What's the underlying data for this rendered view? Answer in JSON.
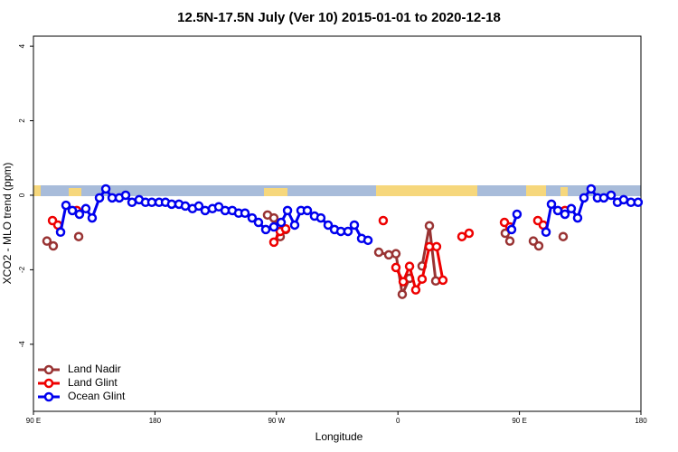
{
  "chart_data": {
    "type": "line",
    "title": "12.5N-17.5N July (Ver 10)   2015-01-01 to 2020-12-18",
    "x_label": "Longitude",
    "y_label": "XCO2 - MLO trend (ppm)",
    "xlim": [
      90,
      540
    ],
    "ylim": [
      -5.8,
      4.27
    ],
    "xticks": [
      {
        "value": 90,
        "label": "90 E"
      },
      180,
      {
        "value": 270,
        "label": "90 W"
      },
      {
        "value": 360,
        "label": "0"
      },
      {
        "value": 450,
        "label": "90 E"
      },
      {
        "value": 540,
        "label": "180"
      }
    ],
    "yticks": [
      -4,
      -2,
      0,
      2,
      4
    ],
    "legend": "bottom-left",
    "series": [
      {
        "name": "Land Nadir",
        "color": "#993333",
        "x": [
          100.0,
          104.7,
          123.5,
          263.4,
          268.1,
          272.8,
          276.8,
          345.8,
          353.2,
          358.5,
          363.2,
          368.6,
          377.9,
          383.3,
          388.0,
          439.5,
          442.9,
          460.3,
          464.3,
          482.4
        ],
        "values": [
          -1.23,
          -1.36,
          -1.11,
          -0.53,
          -0.61,
          -1.11,
          -0.92,
          -1.53,
          -1.6,
          -1.57,
          -2.66,
          -2.23,
          -1.9,
          -0.82,
          -2.3,
          -1.02,
          -1.23,
          -1.23,
          -1.36,
          -1.11
        ]
      },
      {
        "name": "Land Glint",
        "color": "#ee0000",
        "x": [
          104.1,
          108.1,
          122.1,
          268.1,
          272.8,
          276.8,
          349.1,
          358.5,
          363.9,
          368.6,
          373.2,
          377.9,
          383.3,
          388.6,
          393.3,
          407.4,
          412.7,
          438.9,
          442.9,
          463.6,
          467.6,
          483.7
        ],
        "values": [
          -0.68,
          -0.8,
          -0.41,
          -1.26,
          -0.97,
          -0.9,
          -0.68,
          -1.94,
          -2.32,
          -1.91,
          -2.54,
          -2.25,
          -1.38,
          -1.38,
          -2.28,
          -1.11,
          -1.02,
          -0.73,
          -0.85,
          -0.68,
          -0.8,
          -0.41
        ]
      },
      {
        "name": "Ocean Glint",
        "color": "#0000ee",
        "x": [
          110.1,
          114.1,
          118.8,
          124.1,
          128.8,
          133.5,
          138.9,
          143.6,
          148.3,
          153.6,
          158.3,
          163.0,
          168.3,
          173.0,
          177.7,
          183.1,
          187.8,
          192.4,
          197.8,
          202.5,
          207.8,
          212.5,
          217.2,
          222.6,
          227.3,
          232.0,
          237.3,
          242.0,
          246.7,
          252.0,
          256.7,
          262.1,
          268.1,
          273.5,
          278.2,
          283.5,
          288.2,
          292.9,
          298.2,
          302.9,
          308.3,
          313.0,
          317.7,
          323.0,
          327.7,
          333.1,
          337.8,
          444.2,
          448.2,
          469.7,
          473.7,
          478.4,
          483.7,
          488.4,
          493.1,
          497.8,
          503.1,
          507.8,
          512.5,
          517.9,
          522.6,
          527.2,
          532.6,
          537.9
        ],
        "values": [
          -0.99,
          -0.27,
          -0.41,
          -0.51,
          -0.36,
          -0.61,
          -0.07,
          0.17,
          -0.07,
          -0.07,
          0,
          -0.19,
          -0.12,
          -0.19,
          -0.19,
          -0.19,
          -0.19,
          -0.24,
          -0.24,
          -0.29,
          -0.36,
          -0.29,
          -0.41,
          -0.36,
          -0.31,
          -0.41,
          -0.41,
          -0.48,
          -0.48,
          -0.61,
          -0.73,
          -0.92,
          -0.85,
          -0.73,
          -0.41,
          -0.8,
          -0.41,
          -0.41,
          -0.56,
          -0.61,
          -0.8,
          -0.92,
          -0.97,
          -0.97,
          -0.8,
          -1.16,
          -1.21,
          -0.92,
          -0.51,
          -0.99,
          -0.24,
          -0.41,
          -0.51,
          -0.36,
          -0.61,
          -0.07,
          0.17,
          -0.07,
          -0.07,
          0,
          -0.19,
          -0.12,
          -0.19,
          -0.19
        ]
      }
    ]
  }
}
